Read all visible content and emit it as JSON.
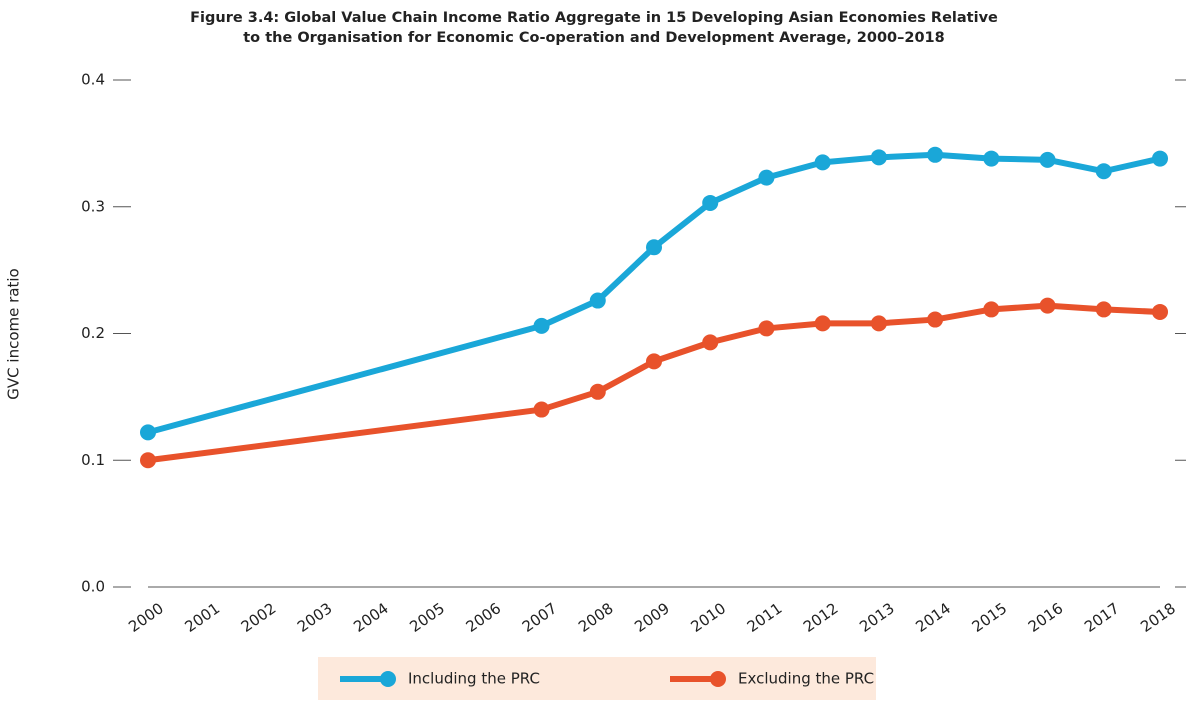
{
  "chart_data": {
    "type": "line",
    "title": [
      "Figure 3.4: Global Value Chain Income Ratio Aggregate in 15 Developing Asian Economies Relative",
      "to the Organisation for Economic Co-operation and Development Average, 2000–2018"
    ],
    "y_label": "GVC income ratio",
    "xlim": [
      2000,
      2018
    ],
    "xticks": [
      2000,
      2001,
      2002,
      2003,
      2004,
      2005,
      2006,
      2007,
      2008,
      2009,
      2010,
      2011,
      2012,
      2013,
      2014,
      2015,
      2016,
      2017,
      2018
    ],
    "ylim": [
      0,
      0.4
    ],
    "yticks": [
      {
        "value": 0,
        "label": "0.0"
      },
      0.1,
      0.2,
      0.3,
      0.4
    ],
    "x": [
      2000,
      2007,
      2008,
      2009,
      2010,
      2011,
      2012,
      2013,
      2014,
      2015,
      2016,
      2017,
      2018
    ],
    "series": [
      {
        "name": "Including the PRC",
        "color": "#1aa7d8",
        "values": [
          0.122,
          0.206,
          0.226,
          0.268,
          0.303,
          0.323,
          0.335,
          0.339,
          0.341,
          0.338,
          0.337,
          0.328,
          0.338
        ]
      },
      {
        "name": "Excluding the PRC",
        "color": "#e8522b",
        "values": [
          0.1,
          0.14,
          0.154,
          0.178,
          0.193,
          0.204,
          0.208,
          0.208,
          0.211,
          0.219,
          0.222,
          0.219,
          0.217
        ]
      }
    ],
    "legend_position": "bottom"
  }
}
